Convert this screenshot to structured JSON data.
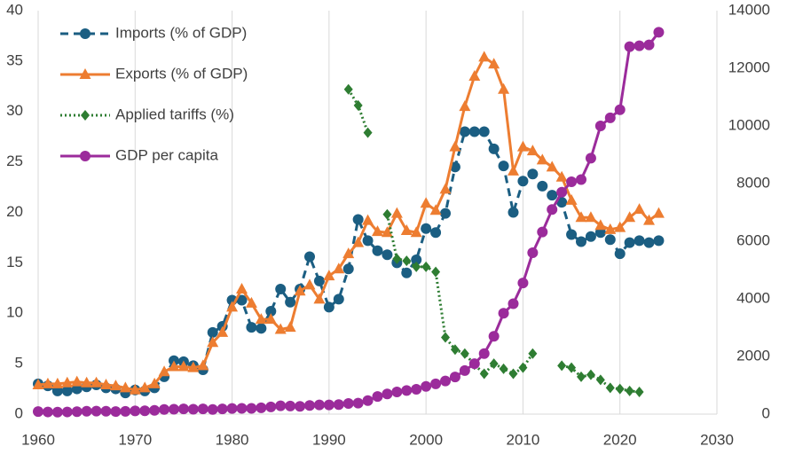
{
  "chart_data": {
    "type": "line",
    "x": [
      1960,
      1961,
      1962,
      1963,
      1964,
      1965,
      1966,
      1967,
      1968,
      1969,
      1970,
      1971,
      1972,
      1973,
      1974,
      1975,
      1976,
      1977,
      1978,
      1979,
      1980,
      1981,
      1982,
      1983,
      1984,
      1985,
      1986,
      1987,
      1988,
      1989,
      1990,
      1991,
      1992,
      1993,
      1994,
      1995,
      1996,
      1997,
      1998,
      1999,
      2000,
      2001,
      2002,
      2003,
      2004,
      2005,
      2006,
      2007,
      2008,
      2009,
      2010,
      2011,
      2012,
      2013,
      2014,
      2015,
      2016,
      2017,
      2018,
      2019,
      2020,
      2021,
      2022,
      2023,
      2024
    ],
    "series": [
      {
        "name": "Imports (% of GDP)",
        "color": "#1b5e82",
        "dash": "dash",
        "marker": "circle",
        "values": [
          3.0,
          2.8,
          2.3,
          2.3,
          2.5,
          2.7,
          2.9,
          2.6,
          2.5,
          2.1,
          2.4,
          2.3,
          2.6,
          3.7,
          5.3,
          5.2,
          4.8,
          4.4,
          8.1,
          8.7,
          11.3,
          11.3,
          8.6,
          8.5,
          10.2,
          12.4,
          11.1,
          12.4,
          15.6,
          13.2,
          10.6,
          11.4,
          14.4,
          19.3,
          17.2,
          16.2,
          15.8,
          15.0,
          14.0,
          15.3,
          18.4,
          18.0,
          19.9,
          24.5,
          28.0,
          28.0,
          28.0,
          26.3,
          24.6,
          20.0,
          23.1,
          23.8,
          22.6,
          21.7,
          21.0,
          17.8,
          17.1,
          17.6,
          18.0,
          17.3,
          15.9,
          17.0,
          17.2,
          17.0,
          17.2
        ]
      },
      {
        "name": "Exports (% of GDP)",
        "color": "#ed7d31",
        "dash": "solid",
        "marker": "triangle",
        "values": [
          2.9,
          3.0,
          3.0,
          3.1,
          3.2,
          3.1,
          3.1,
          2.9,
          2.8,
          2.6,
          2.4,
          2.6,
          3.0,
          4.2,
          4.7,
          4.7,
          4.6,
          4.8,
          7.1,
          8.1,
          10.6,
          12.4,
          11.0,
          9.4,
          9.4,
          8.4,
          8.6,
          12.2,
          12.8,
          11.4,
          13.7,
          14.4,
          15.9,
          17.0,
          19.2,
          18.1,
          18.0,
          19.9,
          18.2,
          18.0,
          20.9,
          20.2,
          22.3,
          26.5,
          30.5,
          33.5,
          35.4,
          34.7,
          32.2,
          24.1,
          26.5,
          26.1,
          25.2,
          24.5,
          23.5,
          21.2,
          19.5,
          19.5,
          18.7,
          18.3,
          18.5,
          19.5,
          20.3,
          19.2,
          19.9
        ]
      },
      {
        "name": "Applied tariffs (%)",
        "color": "#2e7d32",
        "dash": "dot",
        "marker": "diamond",
        "values": [
          null,
          null,
          null,
          null,
          null,
          null,
          null,
          null,
          null,
          null,
          null,
          null,
          null,
          null,
          null,
          null,
          null,
          null,
          null,
          null,
          null,
          null,
          null,
          null,
          null,
          null,
          null,
          null,
          null,
          null,
          null,
          null,
          32.2,
          30.6,
          27.9,
          null,
          19.8,
          15.4,
          15.2,
          14.6,
          14.6,
          14.1,
          7.6,
          6.4,
          6.0,
          4.9,
          4.0,
          5.0,
          4.5,
          4.0,
          4.6,
          6.0,
          null,
          null,
          4.8,
          4.6,
          3.7,
          3.9,
          3.4,
          2.6,
          2.5,
          2.3,
          2.2,
          null,
          null
        ]
      },
      {
        "name": "GDP per capita",
        "color": "#9b2b9b",
        "dash": "solid",
        "marker": "circle",
        "axis": "y2",
        "values": [
          90,
          75,
          70,
          75,
          85,
          100,
          105,
          100,
          90,
          95,
          110,
          115,
          130,
          160,
          170,
          180,
          170,
          180,
          160,
          180,
          195,
          200,
          200,
          220,
          250,
          290,
          280,
          270,
          300,
          320,
          320,
          330,
          370,
          380,
          470,
          610,
          700,
          770,
          820,
          860,
          960,
          1050,
          1150,
          1290,
          1510,
          1750,
          2100,
          2700,
          3500,
          3830,
          4550,
          5600,
          6320,
          7100,
          7700,
          8060,
          8140,
          8880,
          10000,
          10280,
          10560,
          12750,
          12780,
          12810,
          13250
        ]
      }
    ],
    "xlim": [
      1960,
      2030
    ],
    "xticks": [
      1960,
      1970,
      1980,
      1990,
      2000,
      2010,
      2020,
      2030
    ],
    "ylim": [
      0,
      40
    ],
    "yticks": [
      0,
      5,
      10,
      15,
      20,
      25,
      30,
      35,
      40
    ],
    "y2lim": [
      0,
      14000
    ],
    "y2ticks": [
      0,
      2000,
      4000,
      6000,
      8000,
      10000,
      12000,
      14000
    ],
    "xgrid": true,
    "legend": "top-left"
  }
}
